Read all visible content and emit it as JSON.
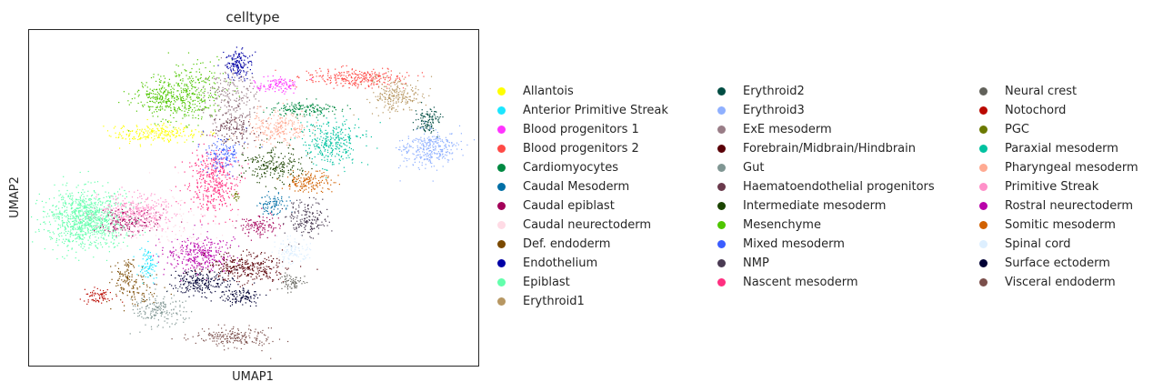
{
  "chart_data": {
    "type": "scatter",
    "title": "celltype",
    "xlabel": "UMAP1",
    "ylabel": "UMAP2",
    "ticks": "none",
    "grid": false,
    "legend_placement": "right, 3 columns",
    "categories": [
      {
        "name": "Allantois",
        "color": "#ffff00"
      },
      {
        "name": "Anterior Primitive Streak",
        "color": "#1ce6ff"
      },
      {
        "name": "Blood progenitors 1",
        "color": "#ff34ff"
      },
      {
        "name": "Blood progenitors 2",
        "color": "#ff4a46"
      },
      {
        "name": "Cardiomyocytes",
        "color": "#008941"
      },
      {
        "name": "Caudal Mesoderm",
        "color": "#006fa6"
      },
      {
        "name": "Caudal epiblast",
        "color": "#a30059"
      },
      {
        "name": "Caudal neurectoderm",
        "color": "#ffdbe5"
      },
      {
        "name": "Def. endoderm",
        "color": "#7a4900"
      },
      {
        "name": "Endothelium",
        "color": "#0000a6"
      },
      {
        "name": "Epiblast",
        "color": "#63ffac"
      },
      {
        "name": "Erythroid1",
        "color": "#b79762"
      },
      {
        "name": "Erythroid2",
        "color": "#004d43"
      },
      {
        "name": "Erythroid3",
        "color": "#8fb0ff"
      },
      {
        "name": "ExE mesoderm",
        "color": "#997d87"
      },
      {
        "name": "Forebrain/Midbrain/Hindbrain",
        "color": "#5a0007"
      },
      {
        "name": "Gut",
        "color": "#809693"
      },
      {
        "name": "Haematoendothelial progenitors",
        "color": "#6a3a4c"
      },
      {
        "name": "Intermediate mesoderm",
        "color": "#1b4400"
      },
      {
        "name": "Mesenchyme",
        "color": "#4fc601"
      },
      {
        "name": "Mixed mesoderm",
        "color": "#3b5dff"
      },
      {
        "name": "NMP",
        "color": "#4a3b53"
      },
      {
        "name": "Nascent mesoderm",
        "color": "#ff2f80"
      },
      {
        "name": "Neural crest",
        "color": "#61615a"
      },
      {
        "name": "Notochord",
        "color": "#ba0900"
      },
      {
        "name": "PGC",
        "color": "#6b7900"
      },
      {
        "name": "Paraxial mesoderm",
        "color": "#00c2a0"
      },
      {
        "name": "Pharyngeal mesoderm",
        "color": "#ffaa92"
      },
      {
        "name": "Primitive Streak",
        "color": "#ff90c9"
      },
      {
        "name": "Rostral neurectoderm",
        "color": "#b903aa"
      },
      {
        "name": "Somitic mesoderm",
        "color": "#d16100"
      },
      {
        "name": "Spinal cord",
        "color": "#ddefff"
      },
      {
        "name": "Surface ectoderm",
        "color": "#000035"
      },
      {
        "name": "Visceral endoderm",
        "color": "#7b4f4b"
      }
    ]
  }
}
